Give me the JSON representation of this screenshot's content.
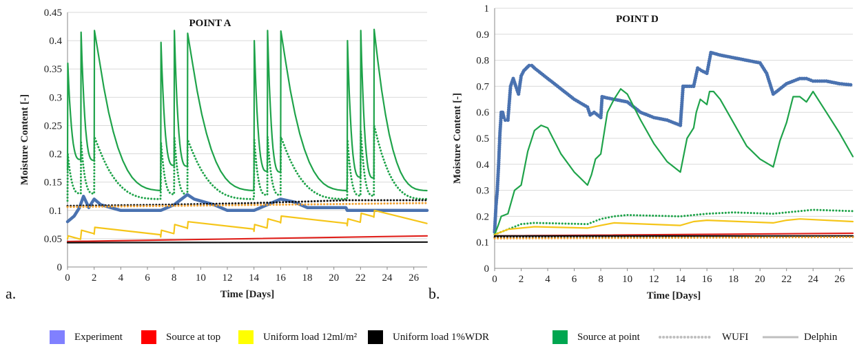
{
  "legend": {
    "items": [
      {
        "label": "Experiment",
        "color": "#8080ff",
        "kind": "swatch"
      },
      {
        "label": "Source at top",
        "color": "#ff0000",
        "kind": "swatch"
      },
      {
        "label": "Uniform load 12ml/m²",
        "color": "#ffff00",
        "kind": "swatch"
      },
      {
        "label": "Uniform load 1%WDR",
        "color": "#000000",
        "kind": "swatch"
      },
      {
        "label": "Source at point",
        "color": "#00a650",
        "kind": "swatch"
      },
      {
        "label": "WUFI",
        "color": "#bfbfbf",
        "kind": "dotted"
      },
      {
        "label": "Delphin",
        "color": "#bfbfbf",
        "kind": "solid"
      }
    ]
  },
  "colors": {
    "experiment": "#4a72b0",
    "source_top": "#e0201b",
    "uniform_12": "#f5c518",
    "uniform_wdr": "#111111",
    "source_point": "#1fa34a",
    "wufi_orange": "#f0a030"
  },
  "chart_data": [
    {
      "type": "line",
      "panel_letter": "a.",
      "title": "POINT A",
      "xlabel": "Time [Days]",
      "ylabel": "Moisture Content [-]",
      "xlim": [
        0,
        27
      ],
      "ylim": [
        0,
        0.45
      ],
      "xticks": [
        "0",
        "2",
        "4",
        "6",
        "8",
        "10",
        "12",
        "14",
        "16",
        "18",
        "20",
        "22",
        "24",
        "26"
      ],
      "yticks": [
        "0",
        "0.05",
        "0.1",
        "0.15",
        "0.2",
        "0.25",
        "0.3",
        "0.35",
        "0.4",
        "0.45"
      ],
      "grid": "horizontal",
      "series": [
        {
          "key": "source_point",
          "style": "solid",
          "spikes": [
            0,
            1,
            2,
            7,
            8,
            9,
            14,
            15,
            16,
            21,
            22,
            23
          ],
          "peaks": [
            0.36,
            0.415,
            0.418,
            0.397,
            0.418,
            0.413,
            0.4,
            0.418,
            0.417,
            0.4,
            0.418,
            0.42
          ],
          "base_start": 0.19,
          "base_end": 0.15,
          "dip": 0.135
        },
        {
          "key": "source_point",
          "style": "dotted",
          "spikes": [
            0,
            1,
            2,
            7,
            8,
            9,
            14,
            15,
            16,
            21,
            22,
            23
          ],
          "peaks": [
            0.2,
            0.22,
            0.23,
            0.22,
            0.23,
            0.225,
            0.225,
            0.23,
            0.23,
            0.225,
            0.24,
            0.25
          ],
          "base_start": 0.13,
          "base_end": 0.125,
          "dip": 0.12
        },
        {
          "key": "experiment",
          "style": "thick",
          "x": [
            0,
            0.5,
            0.9,
            1.2,
            1.6,
            2.0,
            2.5,
            4,
            7,
            8,
            9,
            9.5,
            11,
            12,
            14,
            15,
            16,
            17,
            18,
            20,
            20.9,
            21,
            27
          ],
          "y": [
            0.08,
            0.09,
            0.105,
            0.125,
            0.105,
            0.12,
            0.11,
            0.1,
            0.1,
            0.11,
            0.128,
            0.12,
            0.11,
            0.1,
            0.1,
            0.11,
            0.12,
            0.115,
            0.105,
            0.105,
            0.105,
            0.1,
            0.1
          ]
        },
        {
          "key": "uniform_12",
          "style": "solid",
          "sawtooth": [
            0,
            1,
            2,
            7,
            8,
            9,
            14,
            15,
            16,
            21,
            22,
            23
          ],
          "jumps": [
            0.055,
            0.065,
            0.07,
            0.065,
            0.075,
            0.08,
            0.075,
            0.085,
            0.09,
            0.085,
            0.095,
            0.1
          ],
          "end": 0.08
        },
        {
          "key": "source_top",
          "style": "solid",
          "x": [
            0,
            27
          ],
          "y": [
            0.045,
            0.055
          ]
        },
        {
          "key": "uniform_wdr",
          "style": "solid",
          "x": [
            0,
            27
          ],
          "y": [
            0.043,
            0.044
          ]
        },
        {
          "key": "uniform_wdr",
          "style": "dotted",
          "x": [
            0,
            7,
            14,
            21,
            27
          ],
          "y": [
            0.108,
            0.11,
            0.113,
            0.118,
            0.118
          ]
        },
        {
          "key": "wufi_orange",
          "style": "dotted",
          "x": [
            0,
            27
          ],
          "y": [
            0.106,
            0.113
          ]
        }
      ]
    },
    {
      "type": "line",
      "panel_letter": "b.",
      "title": "POINT D",
      "xlabel": "Time [Days]",
      "ylabel": "Moisture Content [-]",
      "xlim": [
        0,
        27
      ],
      "ylim": [
        0,
        1
      ],
      "xticks": [
        "0",
        "2",
        "4",
        "6",
        "8",
        "10",
        "12",
        "14",
        "16",
        "18",
        "20",
        "22",
        "24",
        "26"
      ],
      "yticks": [
        "0",
        "0.1",
        "0.2",
        "0.3",
        "0.4",
        "0.5",
        "0.6",
        "0.7",
        "0.8",
        "0.9",
        "1"
      ],
      "grid": "horizontal",
      "series": [
        {
          "key": "experiment",
          "style": "dots",
          "x": [
            0,
            0.1,
            0.2,
            0.3,
            0.4,
            0.5,
            0.6,
            0.7,
            0.8,
            1.0,
            1.2,
            1.4,
            1.6,
            1.8,
            2.0,
            2.2,
            2.4,
            2.6,
            2.8,
            3.0,
            3.5,
            4,
            5,
            6,
            7,
            7.2,
            7.5,
            8,
            8.1,
            8.5,
            9,
            10,
            11,
            12,
            13,
            14,
            14.2,
            14.5,
            15,
            15.3,
            15.6,
            16,
            16.3,
            17,
            18,
            19,
            20,
            20.5,
            21,
            21.5,
            22,
            23,
            23.5,
            24,
            25,
            26,
            27
          ],
          "y": [
            0.14,
            0.24,
            0.3,
            0.4,
            0.52,
            0.6,
            0.6,
            0.58,
            0.57,
            0.57,
            0.7,
            0.73,
            0.7,
            0.67,
            0.74,
            0.76,
            0.77,
            0.78,
            0.78,
            0.77,
            0.75,
            0.73,
            0.69,
            0.65,
            0.62,
            0.59,
            0.6,
            0.58,
            0.66,
            0.655,
            0.65,
            0.64,
            0.6,
            0.58,
            0.57,
            0.55,
            0.7,
            0.7,
            0.7,
            0.77,
            0.76,
            0.75,
            0.83,
            0.82,
            0.81,
            0.8,
            0.79,
            0.75,
            0.67,
            0.69,
            0.71,
            0.73,
            0.73,
            0.72,
            0.72,
            0.71,
            0.705
          ]
        },
        {
          "key": "source_point",
          "style": "solid",
          "x": [
            0,
            0.3,
            0.5,
            1.0,
            1.5,
            2.0,
            2.5,
            3.0,
            3.5,
            4.0,
            5,
            6,
            7,
            7.3,
            7.6,
            8,
            8.5,
            9,
            9.5,
            10,
            11,
            12,
            13,
            14,
            14.5,
            15,
            15.2,
            15.5,
            16,
            16.2,
            16.5,
            17,
            18,
            19,
            20,
            21,
            21.5,
            22,
            22.5,
            23,
            23.5,
            24,
            25,
            26,
            27
          ],
          "y": [
            0.13,
            0.17,
            0.2,
            0.21,
            0.3,
            0.32,
            0.45,
            0.53,
            0.55,
            0.54,
            0.44,
            0.37,
            0.32,
            0.36,
            0.42,
            0.44,
            0.6,
            0.65,
            0.69,
            0.67,
            0.57,
            0.48,
            0.41,
            0.37,
            0.5,
            0.54,
            0.6,
            0.65,
            0.63,
            0.68,
            0.68,
            0.65,
            0.56,
            0.47,
            0.42,
            0.39,
            0.49,
            0.56,
            0.66,
            0.66,
            0.64,
            0.68,
            0.6,
            0.52,
            0.43
          ]
        },
        {
          "key": "source_point",
          "style": "dotted",
          "x": [
            0,
            0.5,
            1,
            2,
            3,
            7,
            8,
            9,
            10,
            14,
            16,
            18,
            21,
            22,
            23,
            24,
            27
          ],
          "y": [
            0.13,
            0.14,
            0.15,
            0.17,
            0.175,
            0.17,
            0.19,
            0.2,
            0.205,
            0.2,
            0.21,
            0.215,
            0.21,
            0.215,
            0.22,
            0.225,
            0.22
          ]
        },
        {
          "key": "uniform_12",
          "style": "solid",
          "x": [
            0,
            0.5,
            1,
            2,
            3,
            7,
            8,
            9,
            14,
            15,
            16,
            21,
            22,
            23,
            27
          ],
          "y": [
            0.13,
            0.14,
            0.15,
            0.155,
            0.16,
            0.155,
            0.165,
            0.175,
            0.165,
            0.18,
            0.185,
            0.175,
            0.185,
            0.19,
            0.18
          ]
        },
        {
          "key": "source_top",
          "style": "solid",
          "x": [
            0,
            27
          ],
          "y": [
            0.125,
            0.135
          ]
        },
        {
          "key": "uniform_wdr",
          "style": "solid",
          "x": [
            0,
            27
          ],
          "y": [
            0.125,
            0.125
          ]
        },
        {
          "key": "uniform_wdr",
          "style": "dotted",
          "x": [
            0,
            27
          ],
          "y": [
            0.12,
            0.122
          ]
        },
        {
          "key": "wufi_orange",
          "style": "dotted",
          "x": [
            0,
            27
          ],
          "y": [
            0.115,
            0.12
          ]
        }
      ]
    }
  ]
}
